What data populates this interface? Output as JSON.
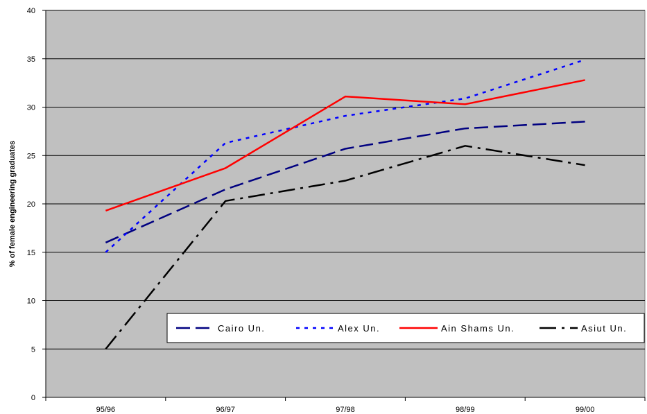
{
  "chart_data": {
    "type": "line",
    "title": "",
    "xlabel": "",
    "ylabel": "% of female engineering graduates",
    "categories": [
      "95/96",
      "96/97",
      "97/98",
      "98/99",
      "99/00"
    ],
    "ylim": [
      0,
      40
    ],
    "yticks": [
      0,
      5,
      10,
      15,
      20,
      25,
      30,
      35,
      40
    ],
    "grid": true,
    "legend_position": "bottom-right",
    "plot_background": "#c0c0c0",
    "series": [
      {
        "name": "Cairo Un.",
        "values": [
          16.0,
          21.5,
          25.7,
          27.8,
          28.5
        ],
        "color": "#000080",
        "dash": "long-dash"
      },
      {
        "name": "Alex Un.",
        "values": [
          15.0,
          26.3,
          29.1,
          30.9,
          34.9
        ],
        "color": "#0000ff",
        "dash": "dot"
      },
      {
        "name": "Ain Shams Un.",
        "values": [
          19.3,
          23.7,
          31.1,
          30.3,
          32.8
        ],
        "color": "#ff0000",
        "dash": "solid"
      },
      {
        "name": "Asiut Un.",
        "values": [
          5.0,
          20.3,
          22.4,
          26.0,
          24.0
        ],
        "color": "#000000",
        "dash": "dash-dot"
      }
    ]
  }
}
